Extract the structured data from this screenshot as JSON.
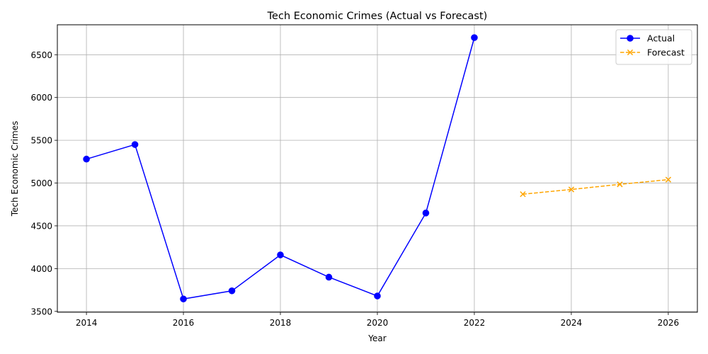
{
  "chart_data": {
    "type": "line",
    "title": "Tech Economic Crimes (Actual vs Forecast)",
    "xlabel": "Year",
    "ylabel": "Tech Economic Crimes",
    "xlim": [
      2013.4,
      2026.6
    ],
    "ylim": [
      3490,
      6850
    ],
    "x_ticks": [
      2014,
      2016,
      2018,
      2020,
      2022,
      2024,
      2026
    ],
    "y_ticks": [
      3500,
      4000,
      4500,
      5000,
      5500,
      6000,
      6500
    ],
    "grid": true,
    "legend_position": "top-right",
    "series": [
      {
        "name": "Actual",
        "color": "#0000ff",
        "line_style": "solid",
        "marker": "circle",
        "x": [
          2014,
          2015,
          2016,
          2017,
          2018,
          2019,
          2020,
          2021,
          2022
        ],
        "y": [
          5280,
          5450,
          3645,
          3740,
          4160,
          3900,
          3680,
          4650,
          6700
        ]
      },
      {
        "name": "Forecast",
        "color": "#ffa500",
        "line_style": "dashed",
        "marker": "x",
        "x": [
          2023,
          2024,
          2025,
          2026
        ],
        "y": [
          4870,
          4925,
          4985,
          5040
        ]
      }
    ]
  }
}
